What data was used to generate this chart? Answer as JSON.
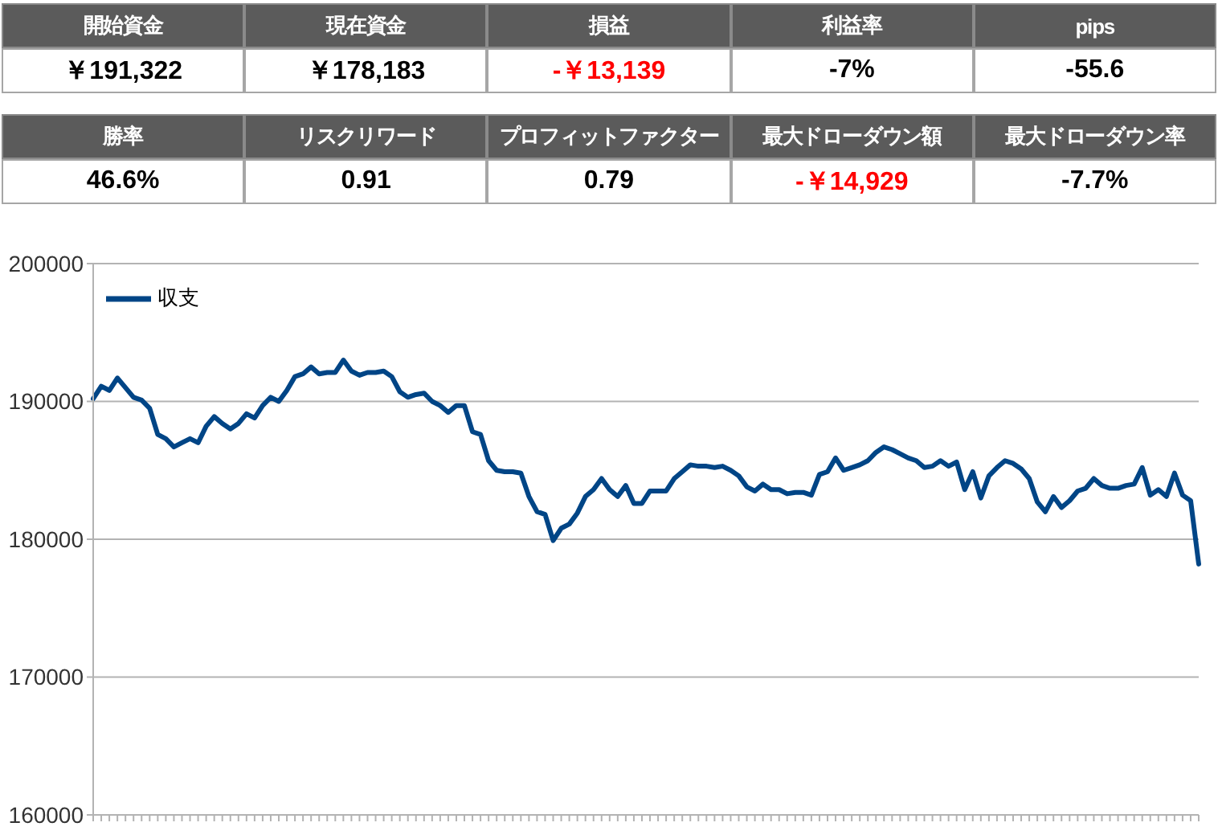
{
  "chart_data": [
    {
      "type": "other",
      "annotations": [
        "開始資金",
        "現在資金",
        "損益",
        "利益率",
        "pips",
        "￥191,322",
        "￥178,183",
        "-￥13,139",
        "-7%",
        "-55.6",
        "勝率",
        "リスクリワード",
        "プロフィットファクター",
        "最大ドローダウン額",
        "最大ドローダウン率",
        "46.6%",
        "0.91",
        "0.79",
        "-￥14,929",
        "-7.7%"
      ],
      "colors": [
        "#ffffff",
        "#ffffff",
        "#ffffff",
        "#ffffff",
        "#ffffff",
        "#000000",
        "#000000",
        "#ff0000",
        "#000000",
        "#000000",
        "#ffffff",
        "#ffffff",
        "#ffffff",
        "#ffffff",
        "#ffffff",
        "#000000",
        "#000000",
        "#000000",
        "#ff0000",
        "#000000"
      ]
    },
    {
      "type": "line",
      "categories": [
        null,
        null,
        null,
        null,
        null,
        null,
        null,
        null,
        null,
        null,
        null,
        null,
        null,
        null,
        null,
        null,
        null,
        null,
        null,
        null,
        null,
        null,
        null,
        null,
        null,
        null,
        null,
        null,
        null,
        null,
        null,
        null,
        null,
        null,
        null,
        null,
        null,
        null,
        null,
        null,
        null,
        null,
        null,
        null,
        null,
        null,
        null,
        null,
        null,
        null,
        null,
        null,
        null,
        null,
        null,
        null,
        null,
        null,
        null,
        null,
        null,
        null,
        null,
        null,
        null,
        null,
        null,
        null,
        null,
        null,
        null,
        null,
        null,
        null,
        null,
        null,
        null,
        null,
        null,
        null,
        null,
        null,
        null,
        null,
        null,
        null,
        null,
        null,
        null,
        null,
        null,
        null,
        null,
        null,
        null,
        null,
        null,
        null,
        null,
        null,
        null,
        null,
        null,
        null,
        null,
        null,
        null,
        null,
        null,
        null,
        null,
        null,
        null,
        null,
        null,
        null,
        null,
        null,
        null,
        null,
        null,
        null,
        null,
        null,
        null,
        null,
        null,
        null,
        null,
        null,
        null,
        null,
        null,
        null,
        null,
        null,
        null,
        null
      ],
      "series": [
        {
          "name": "収支",
          "color": "#004586",
          "values": [
            190200,
            191100,
            190800,
            191700,
            191000,
            190300,
            190100,
            189500,
            187600,
            187300,
            186700,
            187000,
            187300,
            187000,
            188200,
            188900,
            188400,
            188000,
            188400,
            189100,
            188800,
            189700,
            190300,
            190000,
            190800,
            191800,
            192000,
            192500,
            192000,
            192100,
            192100,
            193000,
            192200,
            191900,
            192100,
            192100,
            192200,
            191800,
            190700,
            190300,
            190500,
            190600,
            190000,
            189700,
            189200,
            189700,
            189700,
            187800,
            187600,
            185700,
            185000,
            184900,
            184900,
            184800,
            183100,
            182000,
            181800,
            179900,
            180800,
            181100,
            181900,
            183100,
            183600,
            184400,
            183600,
            183100,
            183900,
            182600,
            182600,
            183500,
            183500,
            183500,
            184400,
            184900,
            185400,
            185300,
            185300,
            185200,
            185300,
            185000,
            184600,
            183800,
            183500,
            184000,
            183600,
            183600,
            183300,
            183400,
            183400,
            183200,
            184700,
            184900,
            185900,
            185000,
            185200,
            185400,
            185700,
            186300,
            186700,
            186500,
            186200,
            185900,
            185700,
            185200,
            185300,
            185700,
            185300,
            185600,
            183600,
            184900,
            183000,
            184600,
            185200,
            185700,
            185500,
            185100,
            184400,
            182700,
            182000,
            183100,
            182300,
            182800,
            183500,
            183700,
            184400,
            183900,
            183700,
            183700,
            183900,
            184000,
            185200,
            183200,
            183600,
            183100,
            184800,
            183200,
            182800,
            178200
          ]
        }
      ],
      "ylim": [
        160000,
        200000
      ],
      "yticks": [
        160000,
        170000,
        180000,
        190000,
        200000
      ],
      "grid": "y",
      "legend": "top left",
      "marker": "none",
      "line_style": "solid"
    }
  ]
}
